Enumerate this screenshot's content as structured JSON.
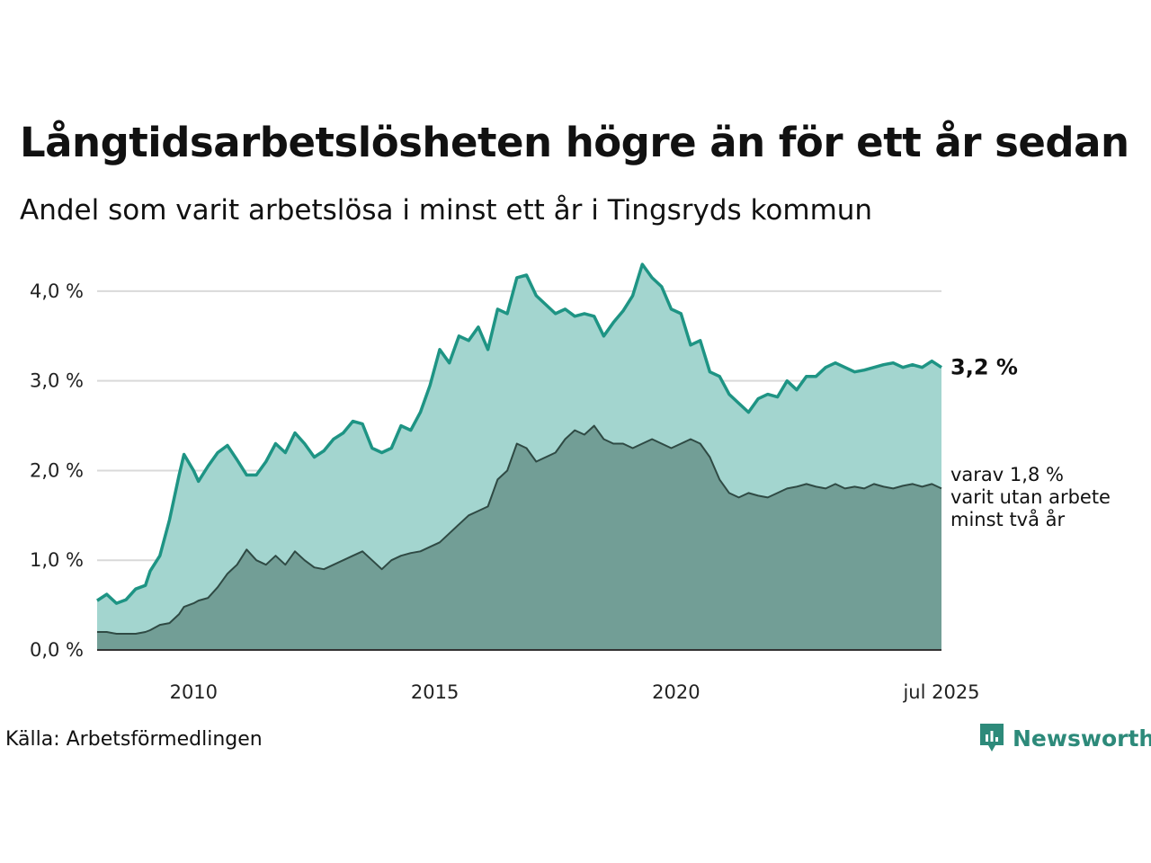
{
  "header": {
    "title": "Långtidsarbetslösheten högre än för ett år sedan",
    "subtitle": "Andel som varit arbetslösa i minst ett år i Tingsryds kommun"
  },
  "footer": {
    "source": "Källa: Arbetsförmedlingen",
    "brand": "Newsworthy"
  },
  "colors": {
    "series_1_line": "#1e9484",
    "series_1_fill": "#a3d5cf",
    "series_2_line": "#2f4a44",
    "series_2_fill": "#729e96",
    "brand": "#2d8a7a"
  },
  "chart_data": {
    "type": "area",
    "title": "Långtidsarbetslösheten högre än för ett år sedan",
    "subtitle": "Andel som varit arbetslösa i minst ett år i Tingsryds kommun",
    "xlabel": "",
    "ylabel": "",
    "x_ticks": [
      {
        "value": 2010,
        "label": "2010"
      },
      {
        "value": 2015,
        "label": "2015"
      },
      {
        "value": 2020,
        "label": "2020"
      },
      {
        "value": 2025.5,
        "label": "jul 2025"
      }
    ],
    "y_ticks": [
      {
        "value": 0,
        "label": "0,0 %"
      },
      {
        "value": 1,
        "label": "1,0 %"
      },
      {
        "value": 2,
        "label": "2,0 %"
      },
      {
        "value": 3,
        "label": "3,0 %"
      },
      {
        "value": 4,
        "label": "4,0 %"
      }
    ],
    "xlim": [
      2008.0,
      2025.5
    ],
    "ylim": [
      0,
      4.4
    ],
    "grid": true,
    "legend": "none",
    "series": [
      {
        "id": "long_term",
        "end_label": "3,2 %",
        "x": [
          2008.0,
          2008.2,
          2008.4,
          2008.6,
          2008.8,
          2009.0,
          2009.1,
          2009.3,
          2009.5,
          2009.7,
          2009.8,
          2010.0,
          2010.1,
          2010.3,
          2010.5,
          2010.7,
          2010.9,
          2011.1,
          2011.3,
          2011.5,
          2011.7,
          2011.9,
          2012.1,
          2012.3,
          2012.5,
          2012.7,
          2012.9,
          2013.1,
          2013.3,
          2013.5,
          2013.7,
          2013.9,
          2014.1,
          2014.3,
          2014.5,
          2014.7,
          2014.9,
          2015.1,
          2015.3,
          2015.5,
          2015.7,
          2015.9,
          2016.1,
          2016.3,
          2016.5,
          2016.7,
          2016.9,
          2017.1,
          2017.3,
          2017.5,
          2017.7,
          2017.9,
          2018.1,
          2018.3,
          2018.5,
          2018.7,
          2018.9,
          2019.1,
          2019.3,
          2019.5,
          2019.7,
          2019.9,
          2020.1,
          2020.3,
          2020.5,
          2020.7,
          2020.9,
          2021.1,
          2021.3,
          2021.5,
          2021.7,
          2021.9,
          2022.1,
          2022.3,
          2022.5,
          2022.7,
          2022.9,
          2023.1,
          2023.3,
          2023.5,
          2023.7,
          2023.9,
          2024.1,
          2024.3,
          2024.5,
          2024.7,
          2024.9,
          2025.1,
          2025.3,
          2025.5
        ],
        "values": [
          0.55,
          0.62,
          0.52,
          0.56,
          0.68,
          0.72,
          0.88,
          1.05,
          1.45,
          1.95,
          2.18,
          2.0,
          1.88,
          2.05,
          2.2,
          2.28,
          2.12,
          1.95,
          1.95,
          2.1,
          2.3,
          2.2,
          2.42,
          2.3,
          2.15,
          2.22,
          2.35,
          2.42,
          2.55,
          2.52,
          2.25,
          2.2,
          2.25,
          2.5,
          2.45,
          2.65,
          2.95,
          3.35,
          3.2,
          3.5,
          3.45,
          3.6,
          3.35,
          3.8,
          3.75,
          4.15,
          4.18,
          3.95,
          3.85,
          3.75,
          3.8,
          3.72,
          3.75,
          3.72,
          3.5,
          3.65,
          3.78,
          3.95,
          4.3,
          4.15,
          4.05,
          3.8,
          3.75,
          3.4,
          3.45,
          3.1,
          3.05,
          2.85,
          2.75,
          2.65,
          2.8,
          2.85,
          2.82,
          3.0,
          2.9,
          3.05,
          3.05,
          3.15,
          3.2,
          3.15,
          3.1,
          3.12,
          3.15,
          3.18,
          3.2,
          3.15,
          3.18,
          3.15,
          3.22,
          3.15
        ]
      },
      {
        "id": "very_long_term",
        "end_label_lines": [
          "varav 1,8 %",
          "varit utan arbete",
          "minst två år"
        ],
        "x": [
          2008.0,
          2008.2,
          2008.4,
          2008.6,
          2008.8,
          2009.0,
          2009.1,
          2009.3,
          2009.5,
          2009.7,
          2009.8,
          2010.0,
          2010.1,
          2010.3,
          2010.5,
          2010.7,
          2010.9,
          2011.1,
          2011.3,
          2011.5,
          2011.7,
          2011.9,
          2012.1,
          2012.3,
          2012.5,
          2012.7,
          2012.9,
          2013.1,
          2013.3,
          2013.5,
          2013.7,
          2013.9,
          2014.1,
          2014.3,
          2014.5,
          2014.7,
          2014.9,
          2015.1,
          2015.3,
          2015.5,
          2015.7,
          2015.9,
          2016.1,
          2016.3,
          2016.5,
          2016.7,
          2016.9,
          2017.1,
          2017.3,
          2017.5,
          2017.7,
          2017.9,
          2018.1,
          2018.3,
          2018.5,
          2018.7,
          2018.9,
          2019.1,
          2019.3,
          2019.5,
          2019.7,
          2019.9,
          2020.1,
          2020.3,
          2020.5,
          2020.7,
          2020.9,
          2021.1,
          2021.3,
          2021.5,
          2021.7,
          2021.9,
          2022.1,
          2022.3,
          2022.5,
          2022.7,
          2022.9,
          2023.1,
          2023.3,
          2023.5,
          2023.7,
          2023.9,
          2024.1,
          2024.3,
          2024.5,
          2024.7,
          2024.9,
          2025.1,
          2025.3,
          2025.5
        ],
        "values": [
          0.2,
          0.2,
          0.18,
          0.18,
          0.18,
          0.2,
          0.22,
          0.28,
          0.3,
          0.4,
          0.48,
          0.52,
          0.55,
          0.58,
          0.7,
          0.85,
          0.95,
          1.12,
          1.0,
          0.95,
          1.05,
          0.95,
          1.1,
          1.0,
          0.92,
          0.9,
          0.95,
          1.0,
          1.05,
          1.1,
          1.0,
          0.9,
          1.0,
          1.05,
          1.08,
          1.1,
          1.15,
          1.2,
          1.3,
          1.4,
          1.5,
          1.55,
          1.6,
          1.9,
          2.0,
          2.3,
          2.25,
          2.1,
          2.15,
          2.2,
          2.35,
          2.45,
          2.4,
          2.5,
          2.35,
          2.3,
          2.3,
          2.25,
          2.3,
          2.35,
          2.3,
          2.25,
          2.3,
          2.35,
          2.3,
          2.15,
          1.9,
          1.75,
          1.7,
          1.75,
          1.72,
          1.7,
          1.75,
          1.8,
          1.82,
          1.85,
          1.82,
          1.8,
          1.85,
          1.8,
          1.82,
          1.8,
          1.85,
          1.82,
          1.8,
          1.83,
          1.85,
          1.82,
          1.85,
          1.8
        ]
      }
    ]
  }
}
